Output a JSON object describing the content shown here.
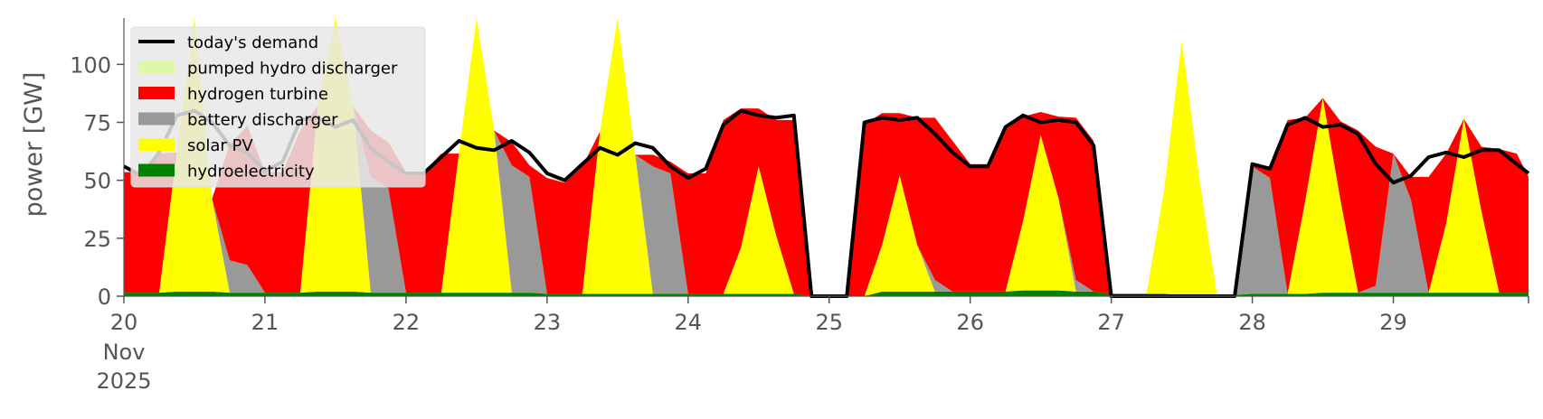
{
  "chart_data": {
    "type": "area",
    "title": "",
    "xlabel": "",
    "ylabel": "power [GW]",
    "ylim": [
      0,
      120
    ],
    "xlim": [
      "2025-11-20 00:00",
      "2025-11-29 23:00"
    ],
    "yticks": [
      0,
      25,
      50,
      75,
      100
    ],
    "xtick_labels": [
      "20",
      "21",
      "22",
      "23",
      "24",
      "25",
      "26",
      "27",
      "28",
      "29"
    ],
    "xtick_sublabels": [
      "Nov",
      "2025"
    ],
    "grid": false,
    "legend_position": "upper left",
    "x": [
      "2025-11-20 00:00",
      "2025-11-20 03:00",
      "2025-11-20 06:00",
      "2025-11-20 09:00",
      "2025-11-20 12:00",
      "2025-11-20 15:00",
      "2025-11-20 18:00",
      "2025-11-20 21:00",
      "2025-11-21 00:00",
      "2025-11-21 03:00",
      "2025-11-21 06:00",
      "2025-11-21 09:00",
      "2025-11-21 12:00",
      "2025-11-21 15:00",
      "2025-11-21 18:00",
      "2025-11-21 21:00",
      "2025-11-22 00:00",
      "2025-11-22 03:00",
      "2025-11-22 06:00",
      "2025-11-22 09:00",
      "2025-11-22 12:00",
      "2025-11-22 15:00",
      "2025-11-22 18:00",
      "2025-11-22 21:00",
      "2025-11-23 00:00",
      "2025-11-23 03:00",
      "2025-11-23 06:00",
      "2025-11-23 09:00",
      "2025-11-23 12:00",
      "2025-11-23 15:00",
      "2025-11-23 18:00",
      "2025-11-23 21:00",
      "2025-11-24 00:00",
      "2025-11-24 03:00",
      "2025-11-24 06:00",
      "2025-11-24 09:00",
      "2025-11-24 12:00",
      "2025-11-24 15:00",
      "2025-11-24 18:00",
      "2025-11-24 21:00",
      "2025-11-25 00:00",
      "2025-11-25 03:00",
      "2025-11-25 06:00",
      "2025-11-25 09:00",
      "2025-11-25 12:00",
      "2025-11-25 15:00",
      "2025-11-25 18:00",
      "2025-11-25 21:00",
      "2025-11-26 00:00",
      "2025-11-26 03:00",
      "2025-11-26 06:00",
      "2025-11-26 09:00",
      "2025-11-26 12:00",
      "2025-11-26 15:00",
      "2025-11-26 18:00",
      "2025-11-26 21:00",
      "2025-11-27 00:00",
      "2025-11-27 03:00",
      "2025-11-27 06:00",
      "2025-11-27 09:00",
      "2025-11-27 12:00",
      "2025-11-27 15:00",
      "2025-11-27 18:00",
      "2025-11-27 21:00",
      "2025-11-28 00:00",
      "2025-11-28 03:00",
      "2025-11-28 06:00",
      "2025-11-28 09:00",
      "2025-11-28 12:00",
      "2025-11-28 15:00",
      "2025-11-28 18:00",
      "2025-11-28 21:00",
      "2025-11-29 00:00",
      "2025-11-29 03:00",
      "2025-11-29 06:00",
      "2025-11-29 09:00",
      "2025-11-29 12:00",
      "2025-11-29 15:00",
      "2025-11-29 18:00",
      "2025-11-29 21:00",
      "2025-11-29 23:00"
    ],
    "series": [
      {
        "name": "hydroelectricity",
        "color": "#008000",
        "values": [
          1.5,
          1.5,
          1.5,
          2,
          2,
          2,
          1.5,
          1.5,
          1.5,
          1.5,
          1.5,
          2,
          2,
          2,
          1.5,
          1.5,
          1.5,
          1.5,
          1.5,
          1.5,
          1.5,
          1.5,
          1.5,
          1.5,
          1,
          1,
          1,
          1,
          1,
          1,
          1,
          1,
          1,
          1,
          1,
          1,
          1,
          1,
          1,
          0,
          0,
          0,
          0,
          2,
          2,
          2,
          2,
          2,
          2,
          2,
          2,
          2.5,
          2.5,
          2.5,
          2,
          2,
          1,
          1,
          1,
          1,
          0.5,
          0.5,
          0.5,
          0.5,
          1,
          1,
          1,
          1,
          1.5,
          1.5,
          1.5,
          1.5,
          1.5,
          1.5,
          1.5,
          1.5,
          1.5,
          1.5,
          1.5,
          1.5,
          1.5
        ]
      },
      {
        "name": "solar PV",
        "color": "#ffff00",
        "values": [
          0,
          0,
          0,
          60,
          120,
          40,
          0,
          0,
          0,
          0,
          0,
          80,
          120,
          80,
          0,
          0,
          0,
          0,
          0,
          60,
          120,
          70,
          0,
          0,
          0,
          0,
          0,
          70,
          120,
          60,
          0,
          0,
          0,
          0,
          0,
          20,
          55,
          25,
          0,
          0,
          0,
          0,
          0,
          20,
          50,
          20,
          0,
          0,
          0,
          0,
          0,
          30,
          67,
          40,
          0,
          0,
          0,
          0,
          0,
          45,
          110,
          50,
          0,
          0,
          0,
          0,
          0,
          40,
          84,
          40,
          0,
          0,
          0,
          0,
          0,
          30,
          75,
          35,
          0,
          0,
          0
        ]
      },
      {
        "name": "battery discharger",
        "color": "#999999",
        "values": [
          0,
          0,
          0,
          0,
          0,
          0,
          14,
          12,
          0,
          0,
          0,
          0,
          0,
          0,
          50,
          45,
          0,
          0,
          0,
          0,
          0,
          0,
          55,
          50,
          0,
          0,
          0,
          0,
          0,
          0,
          55,
          52,
          0,
          0,
          0,
          0,
          0,
          0,
          0,
          0,
          0,
          0,
          0,
          0,
          0,
          0,
          5,
          0,
          0,
          0,
          0,
          0,
          0,
          0,
          5,
          0,
          0,
          0,
          0,
          0,
          0,
          0,
          0,
          0,
          55,
          50,
          0,
          0,
          0,
          0,
          0,
          3,
          60,
          40,
          0,
          0,
          0,
          0,
          0,
          0,
          0
        ]
      },
      {
        "name": "hydrogen turbine",
        "color": "#ff0000",
        "values": [
          52,
          52,
          60,
          0,
          0,
          0,
          50,
          60,
          52,
          52,
          70,
          0,
          0,
          0,
          20,
          20,
          52,
          52,
          60,
          0,
          0,
          0,
          10,
          5,
          50,
          48,
          55,
          0,
          0,
          0,
          5,
          5,
          52,
          52,
          75,
          60,
          25,
          50,
          75,
          0,
          0,
          0,
          74,
          57,
          27,
          55,
          70,
          65,
          55,
          55,
          70,
          45,
          10,
          35,
          70,
          65,
          0,
          0,
          0,
          0,
          0,
          0,
          0,
          0,
          0,
          5,
          75,
          36,
          0,
          34,
          70,
          60,
          0,
          10,
          50,
          30,
          0,
          28,
          62,
          60,
          50
        ]
      },
      {
        "name": "pumped hydro discharger",
        "color": "#dff7a8",
        "values": [
          0,
          0,
          0,
          0,
          0,
          0,
          0,
          0,
          0,
          0,
          0,
          0,
          0,
          0,
          0,
          0,
          0,
          0,
          0,
          0,
          0,
          0,
          0,
          0,
          0,
          2,
          0,
          0,
          0,
          0,
          0,
          0,
          0,
          0,
          0,
          0,
          0,
          0,
          0,
          0,
          0,
          0,
          0,
          0,
          0,
          0,
          0,
          0,
          0,
          0,
          0,
          0,
          0,
          0,
          0,
          0,
          0,
          0,
          0,
          0,
          0,
          0,
          0,
          0,
          0,
          0,
          0,
          0,
          0,
          0,
          0,
          0,
          0,
          0,
          0,
          0,
          0,
          0,
          0,
          0,
          0
        ]
      },
      {
        "name": "today's demand",
        "color": "#000000",
        "values": [
          56,
          52,
          62,
          78,
          80,
          75,
          65,
          62,
          54,
          58,
          76,
          77,
          73,
          76,
          64,
          58,
          53,
          53,
          60,
          67,
          64,
          63,
          67,
          62,
          53,
          50,
          57,
          64,
          61,
          66,
          64,
          56,
          51,
          55,
          74,
          80,
          78,
          77,
          78,
          0,
          0,
          0,
          75,
          77,
          76,
          77,
          70,
          62,
          56,
          56,
          73,
          78,
          75,
          76,
          75,
          65,
          0,
          0,
          0,
          0,
          0,
          0,
          0,
          0,
          57,
          55,
          74,
          77,
          73,
          74,
          70,
          57,
          49,
          52,
          60,
          62,
          60,
          63,
          63,
          57,
          53
        ]
      }
    ]
  }
}
